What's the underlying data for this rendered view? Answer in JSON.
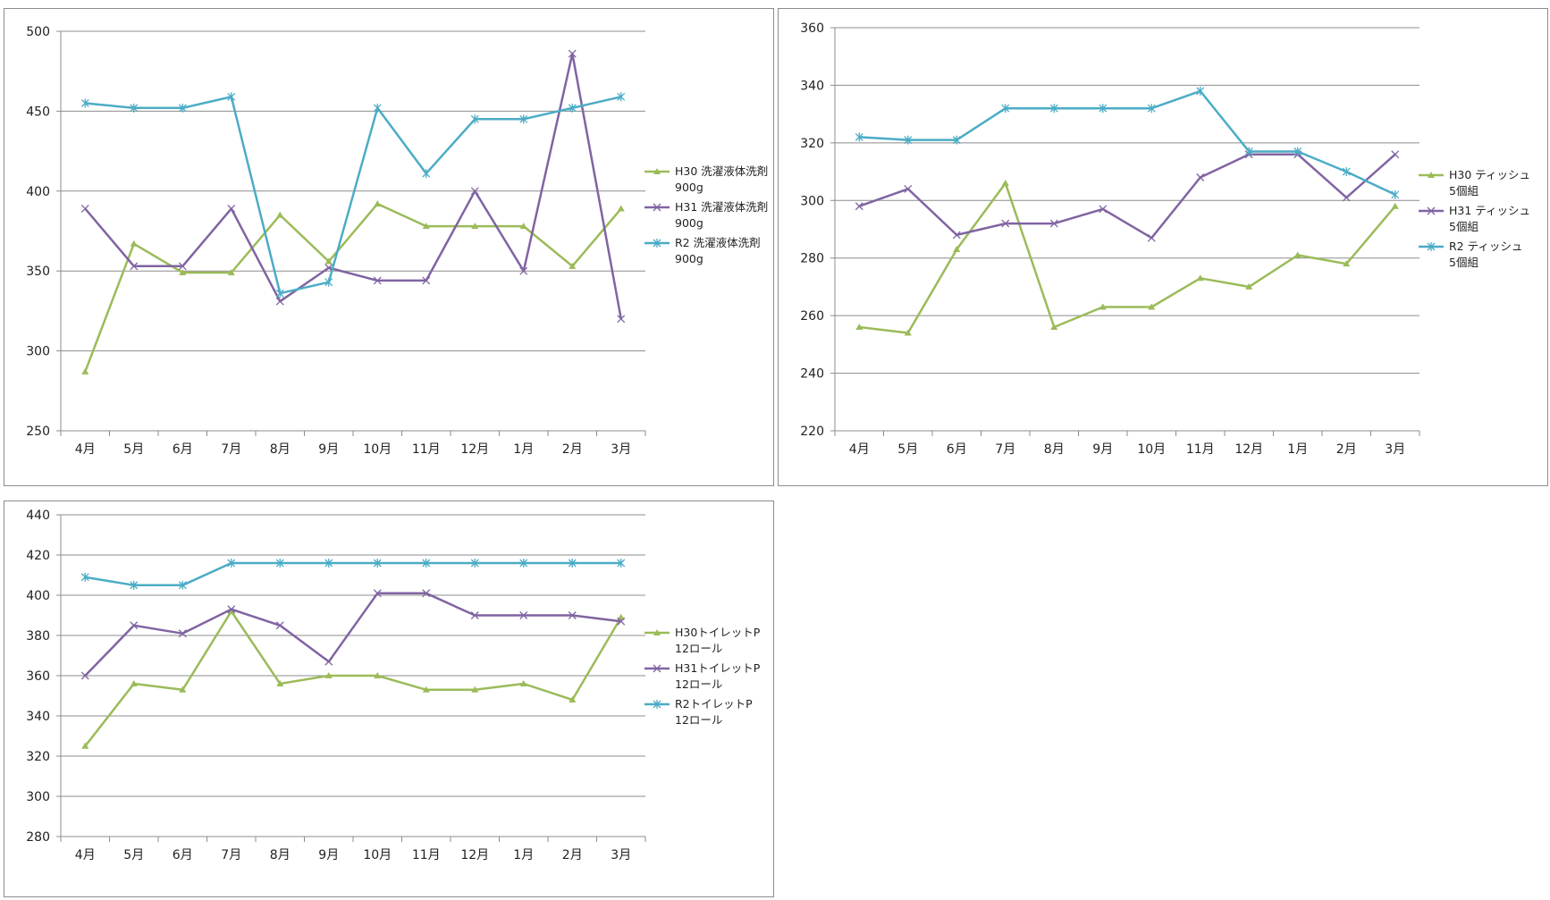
{
  "chart_data": [
    {
      "type": "line",
      "title": "",
      "xlabel": "",
      "ylabel": "",
      "categories": [
        "4月",
        "5月",
        "6月",
        "7月",
        "8月",
        "9月",
        "10月",
        "11月",
        "12月",
        "1月",
        "2月",
        "3月"
      ],
      "ylim": [
        250,
        500
      ],
      "yticks": [
        250,
        300,
        350,
        400,
        450,
        500
      ],
      "grid": true,
      "legend_position": "right",
      "series": [
        {
          "name": "H30 洗濯液体洗剤 900g",
          "legend_lines": [
            "H30 洗濯液体洗剤",
            "900g"
          ],
          "color": "#9bbb59",
          "marker": "triangle",
          "values": [
            287,
            367,
            349,
            349,
            385,
            356,
            392,
            378,
            378,
            378,
            353,
            389
          ]
        },
        {
          "name": "H31 洗濯液体洗剤 900g",
          "legend_lines": [
            "H31 洗濯液体洗剤",
            "900g"
          ],
          "color": "#8064a2",
          "marker": "x",
          "values": [
            389,
            353,
            353,
            389,
            331,
            352,
            344,
            344,
            400,
            350,
            486,
            320
          ]
        },
        {
          "name": "R2 洗濯液体洗剤 900g",
          "legend_lines": [
            "R2 洗濯液体洗剤",
            "900g"
          ],
          "color": "#4bacc6",
          "marker": "star",
          "values": [
            455,
            452,
            452,
            459,
            336,
            343,
            452,
            411,
            445,
            445,
            452,
            459
          ]
        }
      ]
    },
    {
      "type": "line",
      "title": "",
      "xlabel": "",
      "ylabel": "",
      "categories": [
        "4月",
        "5月",
        "6月",
        "7月",
        "8月",
        "9月",
        "10月",
        "11月",
        "12月",
        "1月",
        "2月",
        "3月"
      ],
      "ylim": [
        220,
        360
      ],
      "yticks": [
        220,
        240,
        260,
        280,
        300,
        320,
        340,
        360
      ],
      "grid": true,
      "legend_position": "right",
      "series": [
        {
          "name": "H30 ティッシュ 5個組",
          "legend_lines": [
            "H30 ティッシュ",
            "5個組"
          ],
          "color": "#9bbb59",
          "marker": "triangle",
          "values": [
            256,
            254,
            283,
            306,
            256,
            263,
            263,
            273,
            270,
            281,
            278,
            298
          ]
        },
        {
          "name": "H31 ティッシュ 5個組",
          "legend_lines": [
            "H31 ティッシュ",
            "5個組"
          ],
          "color": "#8064a2",
          "marker": "x",
          "values": [
            298,
            304,
            288,
            292,
            292,
            297,
            287,
            308,
            316,
            316,
            301,
            316
          ]
        },
        {
          "name": "R2 ティッシュ 5個組",
          "legend_lines": [
            "R2 ティッシュ",
            "5個組"
          ],
          "color": "#4bacc6",
          "marker": "star",
          "values": [
            322,
            321,
            321,
            332,
            332,
            332,
            332,
            338,
            317,
            317,
            310,
            302
          ]
        }
      ]
    },
    {
      "type": "line",
      "title": "",
      "xlabel": "",
      "ylabel": "",
      "categories": [
        "4月",
        "5月",
        "6月",
        "7月",
        "8月",
        "9月",
        "10月",
        "11月",
        "12月",
        "1月",
        "2月",
        "3月"
      ],
      "ylim": [
        280,
        440
      ],
      "yticks": [
        280,
        300,
        320,
        340,
        360,
        380,
        400,
        420,
        440
      ],
      "grid": true,
      "legend_position": "right",
      "series": [
        {
          "name": "H30トイレットP 12ロール",
          "legend_lines": [
            "H30トイレットP",
            "12ロール"
          ],
          "color": "#9bbb59",
          "marker": "triangle",
          "values": [
            325,
            356,
            353,
            392,
            356,
            360,
            360,
            353,
            353,
            356,
            348,
            389
          ]
        },
        {
          "name": "H31トイレットP 12ロール",
          "legend_lines": [
            "H31トイレットP",
            "12ロール"
          ],
          "color": "#8064a2",
          "marker": "x",
          "values": [
            360,
            385,
            381,
            393,
            385,
            367,
            401,
            401,
            390,
            390,
            390,
            387
          ]
        },
        {
          "name": "R2トイレットP 12ロール",
          "legend_lines": [
            "R2トイレットP",
            "12ロール"
          ],
          "color": "#4bacc6",
          "marker": "star",
          "values": [
            409,
            405,
            405,
            416,
            416,
            416,
            416,
            416,
            416,
            416,
            416,
            416
          ]
        }
      ]
    }
  ]
}
